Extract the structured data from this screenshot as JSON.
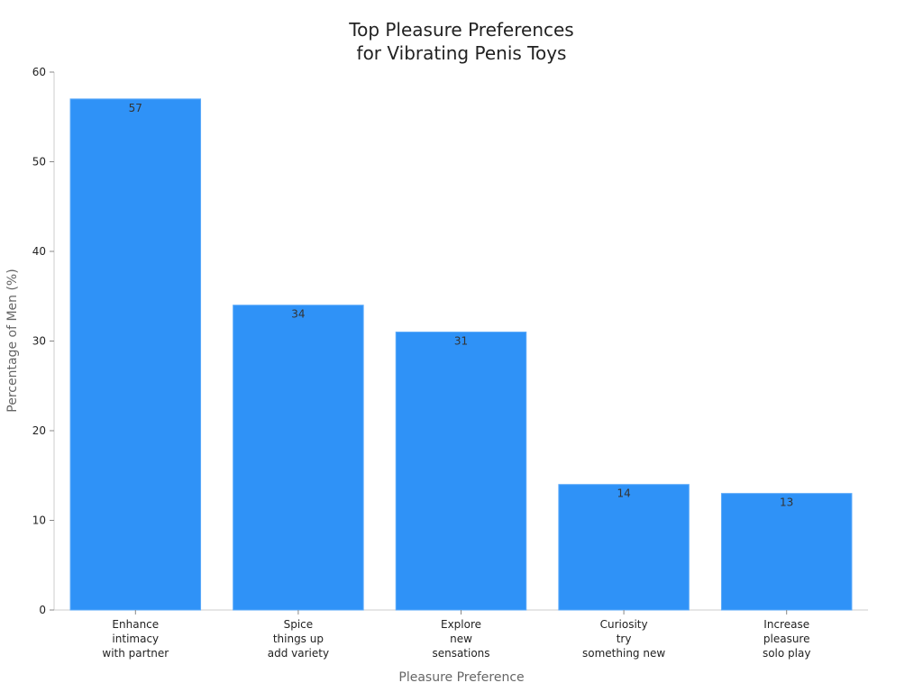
{
  "chart_data": {
    "type": "bar",
    "title_lines": [
      "Top Pleasure Preferences",
      "for Vibrating Penis Toys"
    ],
    "xlabel": "Pleasure Preference",
    "ylabel": "Percentage of Men (%)",
    "ylim": [
      0,
      60
    ],
    "yticks": [
      0,
      10,
      20,
      30,
      40,
      50,
      60
    ],
    "categories": [
      [
        "Enhance",
        "intimacy",
        "with partner"
      ],
      [
        "Spice",
        "things up",
        "add variety"
      ],
      [
        "Explore",
        "new",
        "sensations"
      ],
      [
        "Curiosity",
        "try",
        "something new"
      ],
      [
        "Increase",
        "pleasure",
        "solo play"
      ]
    ],
    "values": [
      57,
      34,
      31,
      14,
      13
    ],
    "bar_color": "#2f92f7",
    "grid": false,
    "legend": "none"
  }
}
